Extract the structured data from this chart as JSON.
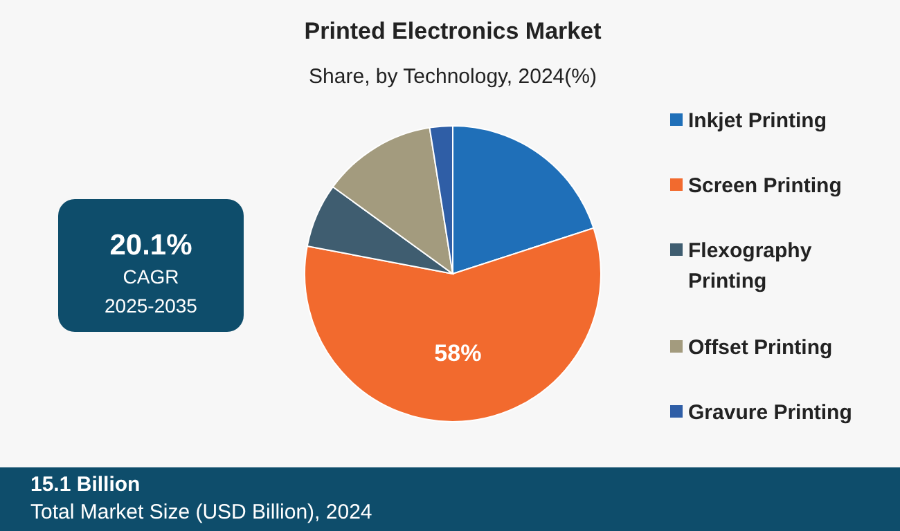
{
  "chart_data": {
    "type": "pie",
    "title": "Printed Electronics Market",
    "subtitle": "Share, by Technology, 2024(%)",
    "categories": [
      "Inkjet Printing",
      "Screen Printing",
      "Flexography Printing",
      "Offset Printing",
      "Gravure Printing"
    ],
    "values": [
      20,
      58,
      7,
      12.5,
      2.5
    ],
    "colors": [
      "#1f6fb8",
      "#f26a2e",
      "#3f5d70",
      "#a39b7e",
      "#2f5ea6"
    ],
    "value_labels": [
      null,
      "58%",
      null,
      null,
      null
    ],
    "legend": "right",
    "annotations": [
      "20.1%",
      "CAGR",
      "2025-2035",
      "15.1 Billion",
      "Total Market Size (USD Billion), 2024"
    ]
  }
}
